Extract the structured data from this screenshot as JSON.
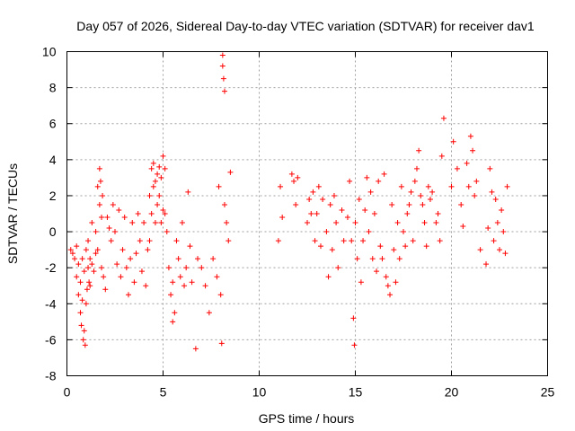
{
  "chart_data": {
    "type": "scatter",
    "title": "Day 057 of 2026, Sidereal Day-to-day VTEC variation (SDTVAR) for receiver dav1",
    "xlabel": "GPS time / hours",
    "ylabel": "SDTVAR / TECUs",
    "xlim": [
      0,
      25
    ],
    "ylim": [
      -8,
      10
    ],
    "xticks": [
      0,
      5,
      10,
      15,
      20,
      25
    ],
    "yticks": [
      -8,
      -6,
      -4,
      -2,
      0,
      2,
      4,
      6,
      8,
      10
    ],
    "grid": true,
    "marker": "+",
    "color": "#ff0000",
    "series": [
      {
        "name": "SDTVAR",
        "x": [
          0.2,
          0.3,
          0.4,
          0.5,
          0.5,
          0.6,
          0.6,
          0.7,
          0.7,
          0.75,
          0.8,
          0.8,
          0.85,
          0.9,
          0.9,
          0.95,
          1.0,
          1.0,
          1.05,
          1.1,
          1.1,
          1.15,
          1.2,
          1.2,
          1.3,
          1.3,
          1.4,
          1.5,
          1.5,
          1.6,
          1.6,
          1.7,
          1.7,
          1.75,
          1.8,
          1.8,
          1.85,
          1.9,
          2.0,
          2.1,
          2.2,
          2.3,
          2.4,
          2.5,
          2.6,
          2.7,
          2.8,
          2.9,
          3.0,
          3.1,
          3.2,
          3.3,
          3.4,
          3.5,
          3.6,
          3.7,
          3.8,
          3.9,
          4.0,
          4.1,
          4.2,
          4.3,
          4.3,
          4.4,
          4.4,
          4.5,
          4.5,
          4.6,
          4.6,
          4.7,
          4.7,
          4.8,
          4.8,
          4.9,
          4.9,
          5.0,
          5.0,
          5.1,
          5.1,
          5.2,
          5.3,
          5.4,
          5.5,
          5.5,
          5.6,
          5.7,
          5.8,
          5.9,
          6.0,
          6.1,
          6.2,
          6.3,
          6.4,
          6.5,
          6.7,
          6.8,
          7.0,
          7.2,
          7.4,
          7.6,
          7.8,
          7.9,
          8.0,
          8.05,
          8.1,
          8.1,
          8.15,
          8.2,
          8.2,
          8.3,
          8.4,
          8.5,
          11.0,
          11.1,
          11.2,
          11.7,
          11.8,
          11.9,
          12.0,
          12.5,
          12.6,
          12.7,
          12.8,
          12.9,
          13.0,
          13.1,
          13.2,
          13.3,
          13.5,
          13.6,
          13.7,
          13.8,
          13.9,
          14.0,
          14.1,
          14.3,
          14.4,
          14.6,
          14.7,
          14.8,
          14.9,
          14.95,
          15.0,
          15.1,
          15.2,
          15.3,
          15.4,
          15.5,
          15.6,
          15.7,
          15.8,
          15.9,
          16.0,
          16.1,
          16.2,
          16.3,
          16.4,
          16.5,
          16.6,
          16.7,
          16.8,
          16.9,
          17.0,
          17.1,
          17.2,
          17.3,
          17.4,
          17.5,
          17.6,
          17.7,
          17.8,
          17.9,
          18.0,
          18.1,
          18.2,
          18.3,
          18.4,
          18.5,
          18.6,
          18.7,
          18.8,
          18.9,
          19.0,
          19.2,
          19.3,
          19.4,
          19.5,
          19.6,
          20.0,
          20.1,
          20.3,
          20.5,
          20.6,
          20.8,
          20.9,
          21.0,
          21.1,
          21.2,
          21.3,
          21.5,
          21.8,
          21.9,
          22.0,
          22.1,
          22.2,
          22.3,
          22.4,
          22.5,
          22.6,
          22.7,
          22.8,
          22.9
        ],
        "y": [
          -1.0,
          -1.2,
          -1.5,
          -0.8,
          -2.5,
          -3.5,
          -1.8,
          -4.5,
          -2.8,
          -5.2,
          -3.8,
          -1.5,
          -6.0,
          -5.5,
          -2.2,
          -6.3,
          -4.0,
          -1.0,
          -3.2,
          -2.0,
          -0.5,
          -2.8,
          -1.5,
          -3.0,
          0.5,
          -1.8,
          -2.2,
          0.0,
          -1.2,
          2.5,
          -1.0,
          3.5,
          1.5,
          2.8,
          0.8,
          -2.0,
          2.0,
          -2.5,
          -3.2,
          0.8,
          0.2,
          -0.5,
          1.5,
          0.0,
          -1.8,
          1.2,
          -2.5,
          -1.0,
          0.8,
          -2.0,
          -3.5,
          -1.5,
          0.5,
          -2.8,
          -1.2,
          1.0,
          -0.5,
          -2.2,
          0.5,
          -3.0,
          -1.0,
          2.0,
          -0.5,
          3.5,
          1.0,
          2.5,
          3.8,
          0.5,
          2.8,
          3.2,
          1.5,
          3.6,
          2.0,
          3.0,
          0.5,
          4.2,
          1.2,
          1.0,
          3.5,
          0.0,
          -2.0,
          -3.5,
          -5.0,
          -2.8,
          -4.5,
          -0.5,
          -1.5,
          -2.5,
          0.5,
          -3.0,
          -2.0,
          2.2,
          -0.8,
          -2.8,
          -6.5,
          -1.5,
          -2.0,
          -3.0,
          -4.5,
          -1.5,
          -2.5,
          2.5,
          -3.5,
          -6.2,
          9.8,
          9.2,
          8.5,
          7.8,
          1.5,
          0.5,
          -0.5,
          3.3,
          -0.5,
          2.5,
          0.8,
          3.2,
          2.8,
          1.5,
          3.0,
          0.5,
          1.8,
          1.0,
          2.2,
          -0.5,
          1.0,
          2.5,
          -0.8,
          1.8,
          0.0,
          -2.5,
          1.5,
          -1.0,
          2.0,
          0.5,
          -2.0,
          1.2,
          -0.5,
          0.8,
          2.8,
          -0.5,
          -4.8,
          -6.3,
          0.5,
          -1.5,
          1.8,
          -2.8,
          -0.5,
          1.2,
          3.0,
          0.0,
          2.2,
          -1.5,
          1.0,
          -2.2,
          2.8,
          -0.8,
          -1.5,
          3.2,
          -2.5,
          -3.0,
          -3.5,
          1.5,
          -1.0,
          -2.8,
          0.5,
          -1.5,
          2.5,
          0.0,
          -0.8,
          1.0,
          1.5,
          2.2,
          -0.5,
          2.8,
          3.5,
          4.5,
          2.0,
          1.5,
          0.5,
          -0.8,
          2.5,
          1.8,
          2.2,
          0.5,
          1.0,
          -0.5,
          4.2,
          6.3,
          2.5,
          5.0,
          3.5,
          1.5,
          0.3,
          3.8,
          2.5,
          5.3,
          4.5,
          2.0,
          2.8,
          -1.0,
          -1.8,
          0.2,
          3.5,
          2.2,
          -0.5,
          1.8,
          0.5,
          -1.0,
          1.2,
          0.0,
          -1.2,
          2.5
        ]
      }
    ]
  }
}
